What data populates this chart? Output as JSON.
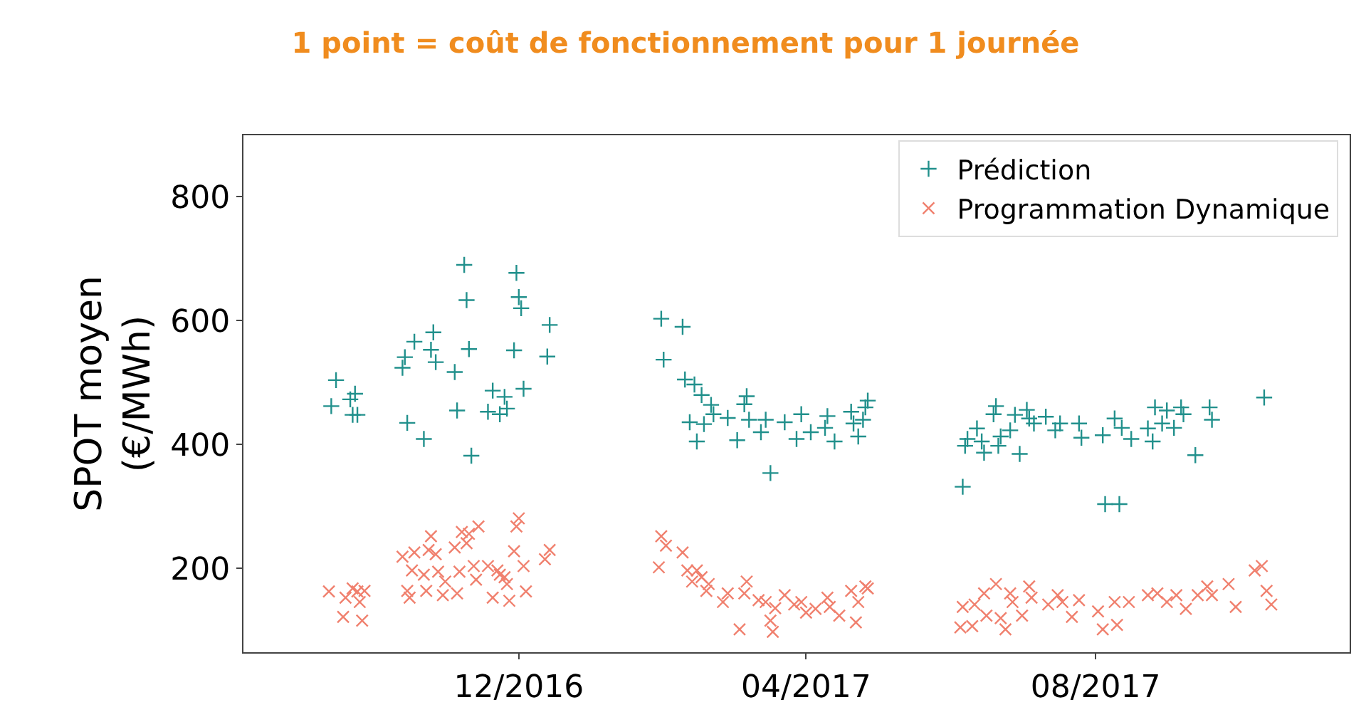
{
  "chart_data": {
    "type": "scatter",
    "title": "1 point = coût de fonctionnement pour 1 journée",
    "ylabel": "SPOT moyen\n(€/MWh)",
    "xlim": [
      "2016-08-07",
      "2017-11-16"
    ],
    "xticks": [
      {
        "value": "2016-12-01",
        "label": "12/2016"
      },
      {
        "value": "2017-04-01",
        "label": "04/2017"
      },
      {
        "value": "2017-08-01",
        "label": "08/2017"
      }
    ],
    "ylim": [
      65,
      899
    ],
    "yticks": [
      200,
      400,
      600,
      800
    ],
    "legend": "top right",
    "series": [
      {
        "name": "Prédiction",
        "color": "#21908c",
        "marker": "cross",
        "x": [
          "2016-09-15",
          "2016-09-13",
          "2016-09-21",
          "2016-09-23",
          "2016-09-22",
          "2016-09-24",
          "2016-10-15",
          "2016-10-22",
          "2016-10-13",
          "2016-10-14",
          "2016-10-18",
          "2016-10-26",
          "2016-10-25",
          "2016-10-27",
          "2016-11-04",
          "2016-11-05",
          "2016-11-08",
          "2016-11-09",
          "2016-11-10",
          "2016-11-11",
          "2016-11-18",
          "2016-11-20",
          "2016-11-23",
          "2016-11-25",
          "2016-11-26",
          "2016-11-29",
          "2016-11-30",
          "2016-12-01",
          "2016-12-02",
          "2016-12-03",
          "2016-12-13",
          "2016-12-14",
          "2017-01-30",
          "2017-02-08",
          "2017-01-31",
          "2017-02-09",
          "2017-02-13",
          "2017-02-16",
          "2017-02-20",
          "2017-02-21",
          "2017-02-11",
          "2017-02-17",
          "2017-02-14",
          "2017-02-27",
          "2017-03-03",
          "2017-03-06",
          "2017-03-07",
          "2017-03-08",
          "2017-03-13",
          "2017-03-15",
          "2017-03-17",
          "2017-03-23",
          "2017-03-28",
          "2017-03-30",
          "2017-04-03",
          "2017-04-10",
          "2017-04-09",
          "2017-04-13",
          "2017-04-20",
          "2017-04-21",
          "2017-04-23",
          "2017-04-25",
          "2017-04-27",
          "2017-04-26",
          "2017-06-06",
          "2017-06-07",
          "2017-06-08",
          "2017-06-12",
          "2017-06-15",
          "2017-06-14",
          "2017-06-20",
          "2017-06-19",
          "2017-06-22",
          "2017-06-21",
          "2017-06-26",
          "2017-06-28",
          "2017-06-30",
          "2017-07-03",
          "2017-07-04",
          "2017-07-06",
          "2017-07-11",
          "2017-07-15",
          "2017-07-17",
          "2017-07-25",
          "2017-07-26",
          "2017-08-04",
          "2017-08-05",
          "2017-08-11",
          "2017-08-09",
          "2017-08-12",
          "2017-08-16",
          "2017-08-23",
          "2017-08-25",
          "2017-08-26",
          "2017-08-29",
          "2017-08-31",
          "2017-09-03",
          "2017-09-06",
          "2017-09-07",
          "2017-09-12",
          "2017-09-18",
          "2017-09-19",
          "2017-10-11"
        ],
        "values": [
          504,
          462,
          473,
          482,
          448,
          448,
          435,
          409,
          524,
          541,
          566,
          581,
          553,
          533,
          517,
          455,
          690,
          633,
          554,
          382,
          453,
          487,
          449,
          477,
          458,
          552,
          677,
          638,
          620,
          490,
          542,
          593,
          603,
          590,
          537,
          505,
          497,
          480,
          464,
          449,
          436,
          433,
          405,
          443,
          407,
          465,
          478,
          440,
          420,
          440,
          354,
          436,
          409,
          449,
          420,
          446,
          427,
          405,
          453,
          434,
          413,
          440,
          471,
          460,
          332,
          398,
          409,
          426,
          387,
          405,
          462,
          449,
          413,
          398,
          423,
          448,
          385,
          456,
          442,
          434,
          445,
          423,
          434,
          434,
          411,
          415,
          304,
          304,
          442,
          427,
          409,
          426,
          405,
          460,
          434,
          455,
          427,
          460,
          449,
          383,
          460,
          440,
          476
        ]
      },
      {
        "name": "Programmation Dynamique",
        "color": "#f0806e",
        "marker": "x",
        "x": [
          "2016-09-12",
          "2016-09-19",
          "2016-09-22",
          "2016-09-24",
          "2016-09-27",
          "2016-09-25",
          "2016-09-18",
          "2016-09-26",
          "2016-10-13",
          "2016-10-15",
          "2016-10-16",
          "2016-10-17",
          "2016-10-18",
          "2016-10-23",
          "2016-10-22",
          "2016-10-25",
          "2016-10-24",
          "2016-10-27",
          "2016-10-28",
          "2016-10-30",
          "2016-10-31",
          "2016-11-04",
          "2016-11-06",
          "2016-11-05",
          "2016-11-07",
          "2016-11-10",
          "2016-11-09",
          "2016-11-12",
          "2016-11-13",
          "2016-11-14",
          "2016-11-18",
          "2016-11-20",
          "2016-11-22",
          "2016-11-23",
          "2016-11-25",
          "2016-11-26",
          "2016-11-27",
          "2016-11-29",
          "2016-11-30",
          "2016-12-01",
          "2016-12-03",
          "2016-12-04",
          "2016-12-12",
          "2016-12-14",
          "2017-01-30",
          "2017-01-29",
          "2017-02-01",
          "2017-02-08",
          "2017-02-10",
          "2017-02-14",
          "2017-02-12",
          "2017-02-16",
          "2017-02-19",
          "2017-02-18",
          "2017-02-25",
          "2017-02-27",
          "2017-03-04",
          "2017-03-07",
          "2017-03-06",
          "2017-03-12",
          "2017-03-15",
          "2017-03-17",
          "2017-03-18",
          "2017-03-19",
          "2017-03-23",
          "2017-03-27",
          "2017-03-30",
          "2017-04-01",
          "2017-04-05",
          "2017-04-10",
          "2017-04-11",
          "2017-04-15",
          "2017-04-20",
          "2017-04-22",
          "2017-04-23",
          "2017-04-26",
          "2017-04-27",
          "2017-06-06",
          "2017-06-05",
          "2017-06-10",
          "2017-06-11",
          "2017-06-15",
          "2017-06-16",
          "2017-06-20",
          "2017-06-22",
          "2017-06-24",
          "2017-06-26",
          "2017-06-27",
          "2017-07-01",
          "2017-07-04",
          "2017-07-05",
          "2017-07-12",
          "2017-07-16",
          "2017-07-18",
          "2017-07-22",
          "2017-07-25",
          "2017-08-02",
          "2017-08-04",
          "2017-08-10",
          "2017-08-09",
          "2017-08-15",
          "2017-08-23",
          "2017-08-27",
          "2017-08-31",
          "2017-09-04",
          "2017-09-08",
          "2017-09-13",
          "2017-09-17",
          "2017-09-19",
          "2017-09-26",
          "2017-09-29",
          "2017-10-07",
          "2017-10-10",
          "2017-10-12",
          "2017-10-14"
        ],
        "values": [
          163,
          153,
          168,
          163,
          164,
          146,
          122,
          116,
          219,
          164,
          153,
          197,
          226,
          164,
          190,
          252,
          230,
          223,
          195,
          157,
          179,
          234,
          195,
          160,
          259,
          256,
          241,
          204,
          182,
          268,
          204,
          153,
          197,
          190,
          186,
          175,
          148,
          228,
          268,
          281,
          204,
          163,
          215,
          230,
          252,
          202,
          237,
          226,
          197,
          197,
          179,
          186,
          175,
          164,
          146,
          160,
          102,
          179,
          160,
          149,
          146,
          116,
          98,
          136,
          157,
          142,
          146,
          129,
          135,
          153,
          138,
          124,
          164,
          113,
          146,
          171,
          168,
          138,
          105,
          107,
          142,
          160,
          124,
          175,
          120,
          102,
          160,
          146,
          124,
          171,
          153,
          142,
          157,
          146,
          122,
          149,
          131,
          102,
          109,
          146,
          146,
          157,
          160,
          146,
          157,
          135,
          157,
          171,
          157,
          175,
          138,
          197,
          204,
          164,
          142
        ]
      }
    ]
  }
}
